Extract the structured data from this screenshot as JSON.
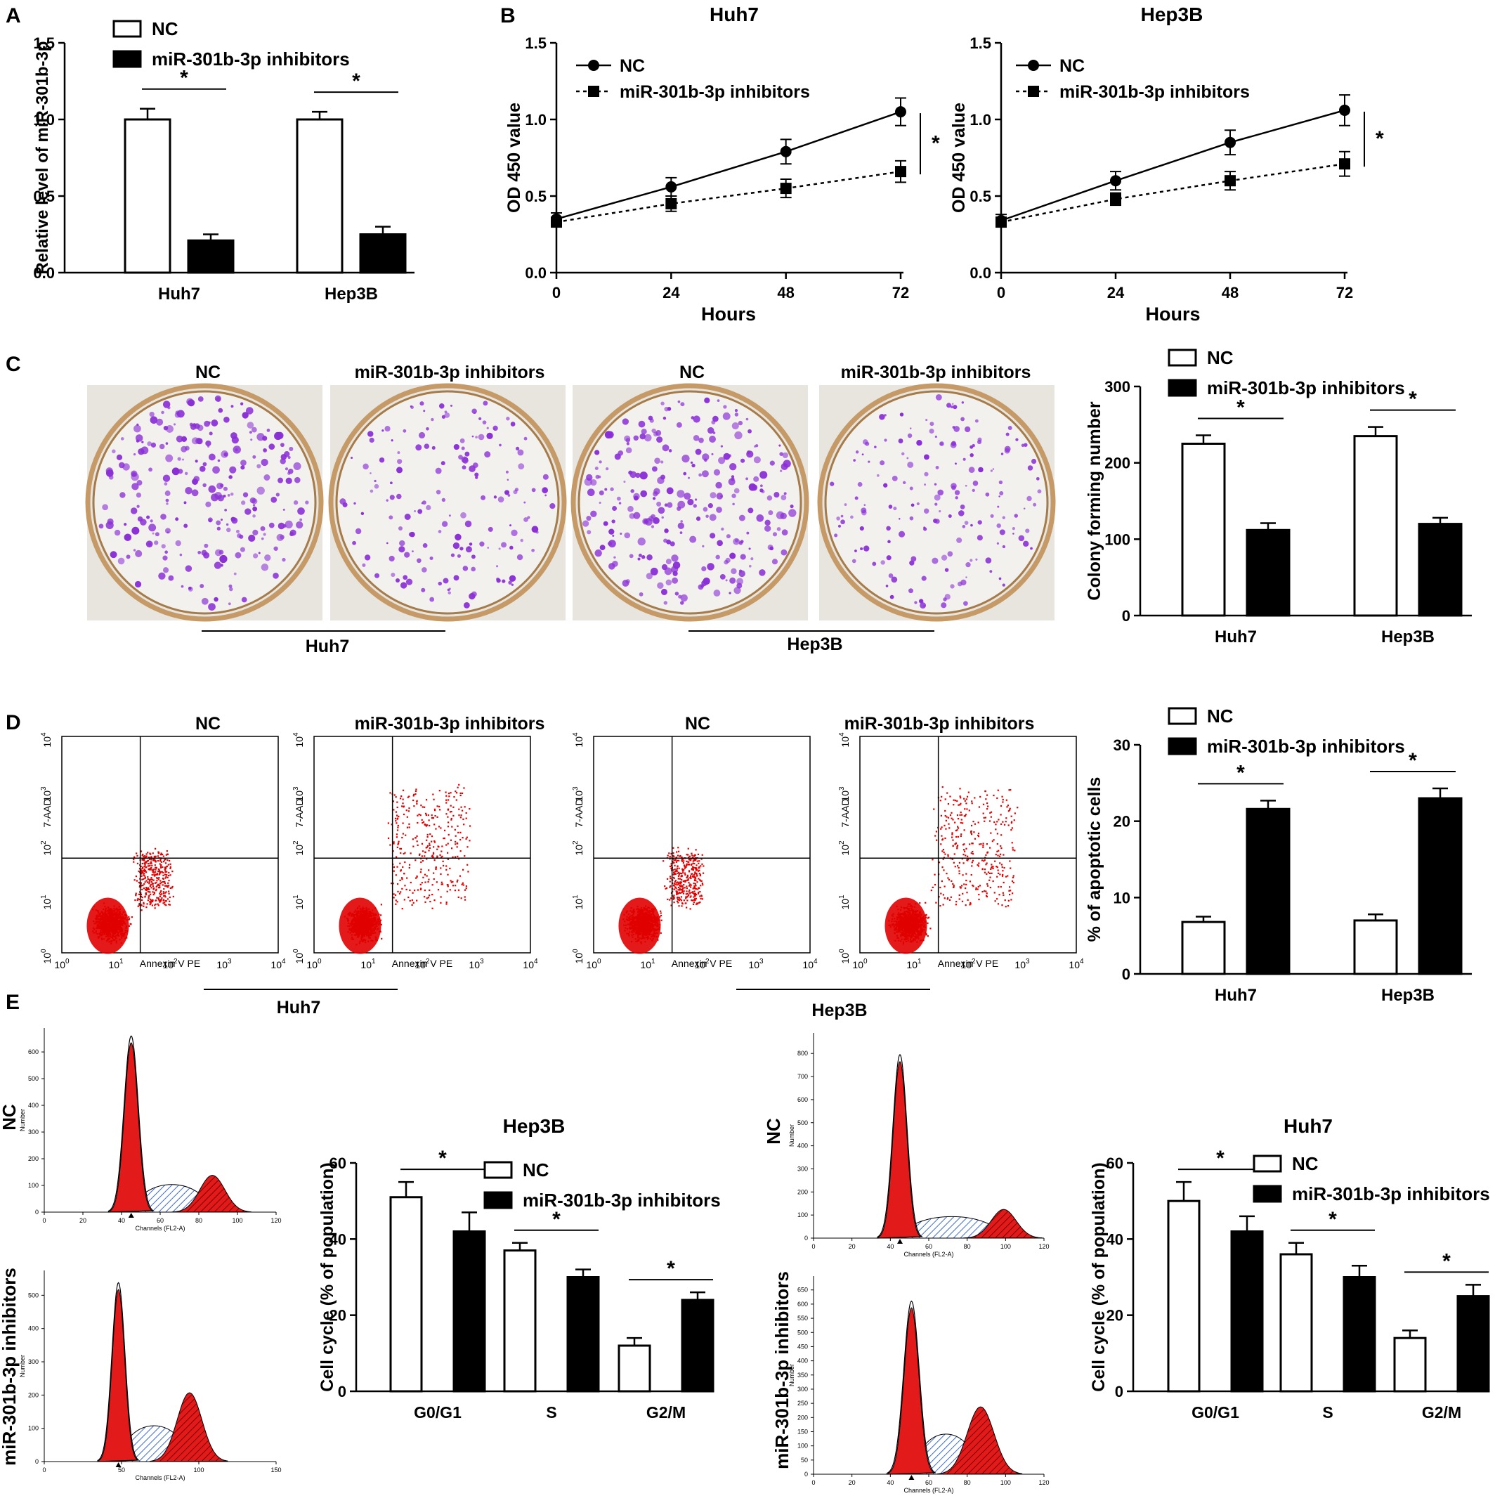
{
  "panels": {
    "A": "A",
    "B": "B",
    "C": "C",
    "D": "D",
    "E": "E"
  },
  "legend": {
    "nc": "NC",
    "inh": "miR-301b-3p inhibitors"
  },
  "sig": "*",
  "cells": {
    "huh7": "Huh7",
    "hep3b": "Hep3B"
  },
  "panelA": {
    "ylabel": "Relative level of miR-301b-3p",
    "ticks": [
      "0.0",
      "0.5",
      "1.0",
      "1.5"
    ],
    "chart_data": {
      "type": "bar",
      "categories": [
        "Huh7",
        "Hep3B"
      ],
      "series": [
        {
          "name": "NC",
          "values": [
            1.0,
            1.0
          ],
          "err": [
            0.07,
            0.05
          ]
        },
        {
          "name": "miR-301b-3p inhibitors",
          "values": [
            0.21,
            0.25
          ],
          "err": [
            0.04,
            0.05
          ]
        }
      ],
      "ylabel": "Relative level of miR-301b-3p",
      "ylim": [
        0,
        1.5
      ]
    }
  },
  "panelB": {
    "ylabel": "OD 450 value",
    "xlabel": "Hours",
    "yticks": [
      "0.0",
      "0.5",
      "1.0",
      "1.5"
    ],
    "xticks": [
      "0",
      "24",
      "48",
      "72"
    ],
    "charts": [
      {
        "title": "Huh7",
        "chart_data": {
          "type": "line",
          "title": "Huh7",
          "x": [
            0,
            24,
            48,
            72
          ],
          "series": [
            {
              "name": "NC",
              "values": [
                0.35,
                0.56,
                0.79,
                1.05
              ],
              "err": [
                0.04,
                0.06,
                0.08,
                0.09
              ]
            },
            {
              "name": "miR-301b-3p inhibitors",
              "values": [
                0.33,
                0.45,
                0.55,
                0.66
              ],
              "err": [
                0.03,
                0.05,
                0.06,
                0.07
              ]
            }
          ],
          "xlabel": "Hours",
          "ylabel": "OD 450 value",
          "ylim": [
            0,
            1.5
          ]
        }
      },
      {
        "title": "Hep3B",
        "chart_data": {
          "type": "line",
          "title": "Hep3B",
          "x": [
            0,
            24,
            48,
            72
          ],
          "series": [
            {
              "name": "NC",
              "values": [
                0.34,
                0.6,
                0.85,
                1.06
              ],
              "err": [
                0.04,
                0.06,
                0.08,
                0.1
              ]
            },
            {
              "name": "miR-301b-3p inhibitors",
              "values": [
                0.33,
                0.48,
                0.6,
                0.71
              ],
              "err": [
                0.03,
                0.04,
                0.06,
                0.08
              ]
            }
          ],
          "xlabel": "Hours",
          "ylabel": "OD 450 value",
          "ylim": [
            0,
            1.5
          ]
        }
      }
    ]
  },
  "panelC": {
    "image_titles": [
      "NC",
      "miR-301b-3p inhibitors",
      "NC",
      "miR-301b-3p inhibitors"
    ],
    "ylabel": "Colony forming number",
    "ticks": [
      "0",
      "100",
      "200",
      "300"
    ],
    "chart_data": {
      "type": "bar",
      "categories": [
        "Huh7",
        "Hep3B"
      ],
      "series": [
        {
          "name": "NC",
          "values": [
            225,
            235
          ],
          "err": [
            11,
            12
          ]
        },
        {
          "name": "miR-301b-3p inhibitors",
          "values": [
            112,
            120
          ],
          "err": [
            9,
            8
          ]
        }
      ],
      "ylabel": "Colony forming number",
      "ylim": [
        0,
        300
      ]
    }
  },
  "panelD": {
    "plot_titles": [
      "NC",
      "miR-301b-3p inhibitors",
      "NC",
      "miR-301b-3p inhibitors"
    ],
    "flow_xlabel": "Annexin V PE",
    "flow_ylabel": "7-AAD",
    "decade_ticks": [
      "0",
      "1",
      "2",
      "3",
      "4"
    ],
    "ylabel": "% of apoptotic cells",
    "ticks": [
      "0",
      "10",
      "20",
      "30"
    ],
    "chart_data": {
      "type": "bar",
      "categories": [
        "Huh7",
        "Hep3B"
      ],
      "series": [
        {
          "name": "NC",
          "values": [
            6.8,
            7.0
          ],
          "err": [
            0.7,
            0.8
          ]
        },
        {
          "name": "miR-301b-3p inhibitors",
          "values": [
            21.6,
            23.0
          ],
          "err": [
            1.1,
            1.3
          ]
        }
      ],
      "ylabel": "% of apoptotic cells",
      "ylim": [
        0,
        30
      ]
    }
  },
  "panelE": {
    "row_labels": [
      "NC",
      "miR-301b-3p inhibitors"
    ],
    "hist_ylabel": "Number",
    "hist_xlabel": "Channels (FL2-A)",
    "hist_xticks": [
      "0",
      "20",
      "40",
      "60",
      "80",
      "100",
      "120"
    ],
    "hist_xticks2": [
      "0",
      "50",
      "100",
      "150"
    ],
    "hist_yticks_left": [
      [
        "0",
        "100",
        "200",
        "300",
        "400",
        "500",
        "600"
      ],
      [
        "0",
        "100",
        "200",
        "300",
        "400",
        "500"
      ]
    ],
    "hist_yticks_right": [
      [
        "0",
        "100",
        "200",
        "300",
        "400",
        "500",
        "600",
        "700",
        "800"
      ],
      [
        "0",
        "50",
        "100",
        "150",
        "200",
        "250",
        "300",
        "350",
        "400",
        "450",
        "500",
        "550",
        "600",
        "650"
      ]
    ],
    "ylabel": "Cell cycle (% of population)",
    "ticks": [
      "0",
      "20",
      "40",
      "60"
    ],
    "charts": [
      {
        "title": "Hep3B",
        "chart_data": {
          "type": "bar",
          "title": "Hep3B",
          "categories": [
            "G0/G1",
            "S",
            "G2/M"
          ],
          "series": [
            {
              "name": "NC",
              "values": [
                51,
                37,
                12
              ],
              "err": [
                4,
                2,
                2
              ]
            },
            {
              "name": "miR-301b-3p inhibitors",
              "values": [
                42,
                30,
                24
              ],
              "err": [
                5,
                2,
                2
              ]
            }
          ],
          "ylabel": "Cell cycle (% of population)",
          "ylim": [
            0,
            60
          ]
        }
      },
      {
        "title": "Huh7",
        "chart_data": {
          "type": "bar",
          "title": "Huh7",
          "categories": [
            "G0/G1",
            "S",
            "G2/M"
          ],
          "series": [
            {
              "name": "NC",
              "values": [
                50,
                36,
                14
              ],
              "err": [
                5,
                3,
                2
              ]
            },
            {
              "name": "miR-301b-3p inhibitors",
              "values": [
                42,
                30,
                25
              ],
              "err": [
                4,
                3,
                3
              ]
            }
          ],
          "ylabel": "Cell cycle (% of population)",
          "ylim": [
            0,
            60
          ]
        }
      }
    ]
  },
  "colors": {
    "black": "#000000",
    "white": "#ffffff",
    "dot_red": "#e10000",
    "colony": "#8a2fd6",
    "hatch": "#3b6bd6",
    "frame": "#b08a5a"
  }
}
